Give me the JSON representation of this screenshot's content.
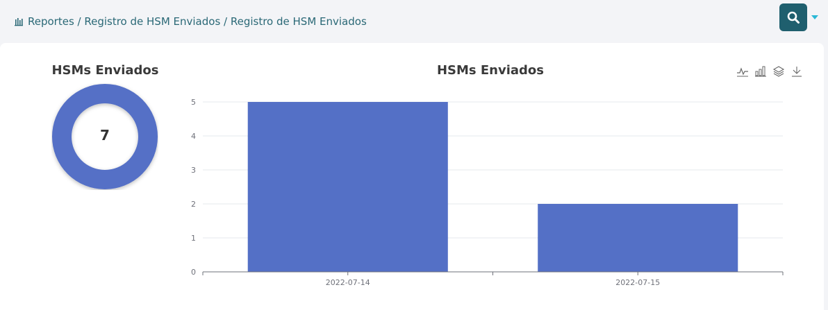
{
  "breadcrumb": {
    "text": "Reportes / Registro de HSM Enviados / Registro de HSM Enviados",
    "icon": "bar-chart-icon"
  },
  "search": {
    "icon": "search-icon",
    "button_color": "#1f5f6e"
  },
  "donut": {
    "title": "HSMs Enviados",
    "value": "7",
    "color": "#5470c6"
  },
  "toolbox": [
    "line-chart-icon",
    "bar-chart-icon",
    "stack-icon",
    "download-icon"
  ],
  "chart_data": {
    "type": "bar",
    "title": "HSMs Enviados",
    "categories": [
      "2022-07-14",
      "2022-07-15"
    ],
    "values": [
      5,
      2
    ],
    "ylim": [
      0,
      5
    ],
    "yticks": [
      "0",
      "1",
      "2",
      "3",
      "4",
      "5"
    ],
    "xlabel": "",
    "ylabel": "",
    "grid": true,
    "bar_color": "#5470c6"
  }
}
